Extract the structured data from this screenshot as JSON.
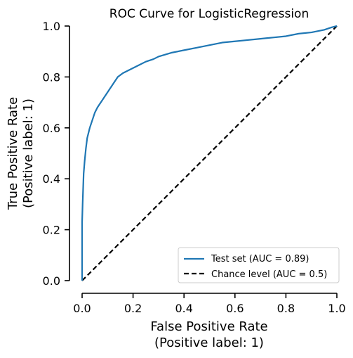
{
  "chart_data": {
    "type": "line",
    "title": "ROC Curve for LogisticRegression",
    "xlabel": "False Positive Rate",
    "xlabel_sub": "(Positive label: 1)",
    "ylabel": "True Positive Rate",
    "ylabel_sub": "(Positive label: 1)",
    "xlim": [
      0,
      1
    ],
    "ylim": [
      0,
      1
    ],
    "x_ticks": [
      0.0,
      0.2,
      0.4,
      0.6,
      0.8,
      1.0
    ],
    "y_ticks": [
      0.0,
      0.2,
      0.4,
      0.6,
      0.8,
      1.0
    ],
    "x_tick_labels": [
      "0.0",
      "0.2",
      "0.4",
      "0.6",
      "0.8",
      "1.0"
    ],
    "y_tick_labels": [
      "0.0",
      "0.2",
      "0.4",
      "0.6",
      "0.8",
      "1.0"
    ],
    "grid": false,
    "legend_position": "lower-right",
    "series": [
      {
        "name": "Test set (AUC = 0.89)",
        "color": "#1f77b4",
        "style": "solid",
        "x": [
          0.0,
          0.0,
          0.002,
          0.004,
          0.006,
          0.01,
          0.015,
          0.02,
          0.03,
          0.04,
          0.05,
          0.06,
          0.08,
          0.1,
          0.12,
          0.14,
          0.16,
          0.18,
          0.2,
          0.22,
          0.25,
          0.28,
          0.3,
          0.35,
          0.4,
          0.45,
          0.5,
          0.55,
          0.6,
          0.65,
          0.7,
          0.75,
          0.8,
          0.85,
          0.9,
          0.95,
          0.98,
          1.0
        ],
        "y": [
          0.0,
          0.23,
          0.3,
          0.36,
          0.42,
          0.47,
          0.52,
          0.56,
          0.6,
          0.63,
          0.66,
          0.68,
          0.71,
          0.74,
          0.77,
          0.8,
          0.815,
          0.825,
          0.835,
          0.845,
          0.86,
          0.87,
          0.88,
          0.895,
          0.905,
          0.915,
          0.925,
          0.935,
          0.94,
          0.945,
          0.95,
          0.955,
          0.96,
          0.97,
          0.975,
          0.985,
          0.995,
          1.0
        ]
      },
      {
        "name": "Chance level (AUC = 0.5)",
        "color": "#000000",
        "style": "dashed",
        "x": [
          0.0,
          1.0
        ],
        "y": [
          0.0,
          1.0
        ]
      }
    ]
  }
}
